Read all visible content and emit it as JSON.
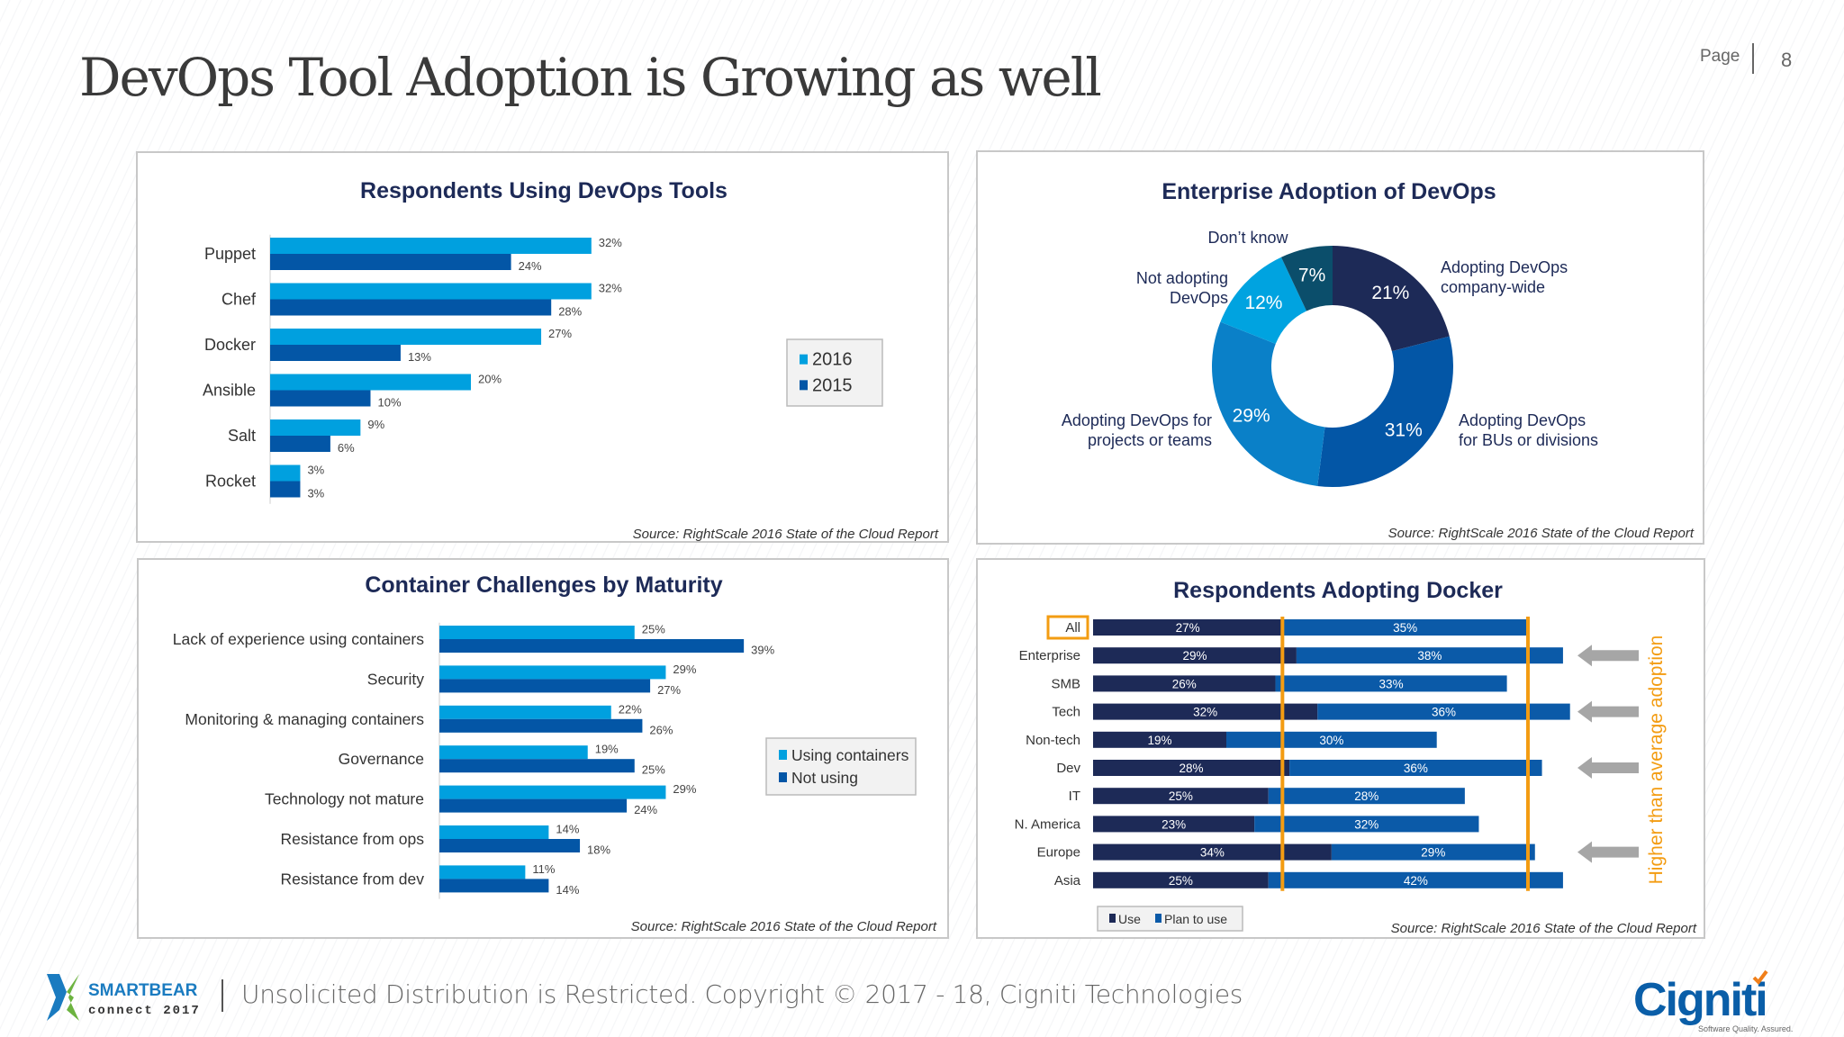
{
  "slide": {
    "title": "DevOps Tool Adoption is Growing as well",
    "page_label": "Page",
    "page_number": "8"
  },
  "footer": {
    "text": "Unsolicited Distribution is Restricted. Copyright © 2017 - 18, Cigniti Technologies",
    "left_logo": {
      "line1": "SMARTBEAR",
      "line2": "connect 2017"
    },
    "right_logo": {
      "name": "Cigniti",
      "tagline": "Software Quality. Assured."
    }
  },
  "colors": {
    "light_blue": "#00a0df",
    "dark_blue": "#0356a6",
    "navy": "#1d2a57",
    "orange": "#f39c12",
    "arrow_gray": "#a6a6a6"
  },
  "chart_data": [
    {
      "type": "bar",
      "orientation": "horizontal",
      "title": "Respondents Using DevOps Tools",
      "categories": [
        "Puppet",
        "Chef",
        "Docker",
        "Ansible",
        "Salt",
        "Rocket"
      ],
      "series": [
        {
          "name": "2016",
          "values": [
            32,
            32,
            27,
            20,
            9,
            3
          ],
          "color": "#00a0df"
        },
        {
          "name": "2015",
          "values": [
            24,
            28,
            13,
            10,
            6,
            3
          ],
          "color": "#0356a6"
        }
      ],
      "unit": "%",
      "legend_position": "right",
      "source": "Source: RightScale 2016 State of the Cloud Report"
    },
    {
      "type": "pie",
      "donut": true,
      "title": "Enterprise Adoption of DevOps",
      "slices": [
        {
          "label": "Adopting DevOps company-wide",
          "value": 21,
          "color": "#1d2a57"
        },
        {
          "label": "Adopting DevOps for BUs or divisions",
          "value": 31,
          "color": "#0356a6"
        },
        {
          "label": "Adopting DevOps for projects or teams",
          "value": 29,
          "color": "#0a80c8"
        },
        {
          "label": "Not adopting DevOps",
          "value": 12,
          "color": "#00a3e0"
        },
        {
          "label": "Don’t know",
          "value": 7,
          "color": "#0b4e6b"
        }
      ],
      "unit": "%",
      "source": "Source: RightScale 2016 State of the Cloud Report"
    },
    {
      "type": "bar",
      "orientation": "horizontal",
      "title": "Container Challenges by Maturity",
      "categories": [
        "Lack of experience using containers",
        "Security",
        "Monitoring & managing containers",
        "Governance",
        "Technology not mature",
        "Resistance from ops",
        "Resistance from dev"
      ],
      "series": [
        {
          "name": "Using containers",
          "values": [
            25,
            29,
            22,
            19,
            29,
            14,
            11
          ],
          "color": "#00a0df"
        },
        {
          "name": "Not using",
          "values": [
            39,
            27,
            26,
            25,
            24,
            18,
            14
          ],
          "color": "#0356a6"
        }
      ],
      "unit": "%",
      "legend_position": "right",
      "source": "Source: RightScale 2016 State of the Cloud Report"
    },
    {
      "type": "bar",
      "orientation": "horizontal",
      "stacked": true,
      "title": "Respondents Adopting Docker",
      "categories": [
        "All",
        "Enterprise",
        "SMB",
        "Tech",
        "Non-tech",
        "Dev",
        "IT",
        "N. America",
        "Europe",
        "Asia"
      ],
      "series": [
        {
          "name": "Use",
          "values": [
            27,
            29,
            26,
            32,
            19,
            28,
            25,
            23,
            34,
            25
          ],
          "color": "#1d2a57"
        },
        {
          "name": "Plan to use",
          "values": [
            35,
            38,
            33,
            36,
            30,
            36,
            28,
            32,
            29,
            42
          ],
          "color": "#0b5aa8"
        }
      ],
      "reference_lines": [
        27,
        62
      ],
      "highlighted_category": "All",
      "arrows_on": [
        "Enterprise",
        "Tech",
        "Dev",
        "Europe"
      ],
      "annotation": "Higher than average adoption",
      "unit": "%",
      "legend_position": "bottom-left",
      "source": "Source: RightScale 2016 State of the Cloud Report"
    }
  ]
}
